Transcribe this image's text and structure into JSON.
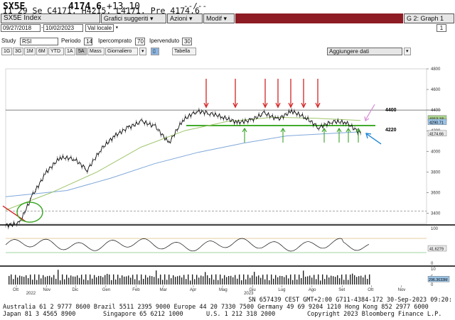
{
  "quote_line": {
    "ticker": "SX5E",
    "last_price": "4174.6",
    "change": "+13.10",
    "extra": "--/--",
    "line2": "I1 29 Se C4171. H4215. L4171. Pre 4174.6"
  },
  "title_bar": {
    "security": "SX5E Index",
    "suggested_charts": "Grafici suggeriti",
    "actions": "Azioni",
    "edit": "Modif",
    "graph_label": "G 2: Graph 1"
  },
  "controls": {
    "date_start": "09/27/2018",
    "date_end": "10/02/2023",
    "currency": "Val locale",
    "study_label": "Study",
    "study_value": "RSI",
    "period_label": "Periodo",
    "period_value": "14",
    "overbought_label": "Ipercomprato",
    "overbought_value": "70",
    "oversold_label": "Ipervenduto",
    "oversold_value": "30",
    "add_data": "Aggiungere dati",
    "table_label": "Tabella",
    "tabs": [
      "1G",
      "3G",
      "1M",
      "6M",
      "YTD",
      "1A",
      "5A",
      "Mass",
      "Giornaliero"
    ],
    "selected_tab": "5A",
    "page_number": "1"
  },
  "chart_data": {
    "type": "line",
    "title": "",
    "price_axis": [
      4800,
      4600,
      4400,
      4200,
      4000,
      3800,
      3600,
      3400
    ],
    "rsi_axis": [
      100,
      0
    ],
    "volume_axis": [
      10,
      5,
      0
    ],
    "x_month_labels": [
      "Ott",
      "Nov",
      "Dic",
      "Gen",
      "Feb",
      "Mar",
      "Apr",
      "Mag",
      "Giu",
      "Lug",
      "Ago",
      "Set",
      "Ott",
      "Nov"
    ],
    "x_year_labels": [
      "2022",
      "2023"
    ],
    "annotations": {
      "resistance_level": "4400",
      "support_level": "4220",
      "price_tags": [
        "4313.18",
        "4290.71",
        "4174.66"
      ],
      "rsi_tag": "41.6279",
      "volume_tag": "296.3633M"
    },
    "price_series_approx": [
      [
        "2022-09-29",
        3280
      ],
      [
        "2022-10-13",
        3300
      ],
      [
        "2022-10-27",
        3580
      ],
      [
        "2022-11-10",
        3800
      ],
      [
        "2022-11-24",
        3940
      ],
      [
        "2022-12-08",
        3930
      ],
      [
        "2022-12-22",
        3820
      ],
      [
        "2023-01-05",
        4020
      ],
      [
        "2023-01-19",
        4150
      ],
      [
        "2023-02-02",
        4230
      ],
      [
        "2023-02-16",
        4290
      ],
      [
        "2023-03-02",
        4240
      ],
      [
        "2023-03-16",
        4080
      ],
      [
        "2023-03-30",
        4300
      ],
      [
        "2023-04-13",
        4390
      ],
      [
        "2023-04-27",
        4370
      ],
      [
        "2023-05-11",
        4330
      ],
      [
        "2023-05-25",
        4280
      ],
      [
        "2023-06-08",
        4300
      ],
      [
        "2023-06-22",
        4370
      ],
      [
        "2023-07-06",
        4310
      ],
      [
        "2023-07-20",
        4390
      ],
      [
        "2023-08-03",
        4330
      ],
      [
        "2023-08-17",
        4230
      ],
      [
        "2023-08-31",
        4290
      ],
      [
        "2023-09-14",
        4280
      ],
      [
        "2023-09-29",
        4174.6
      ]
    ]
  },
  "footer": {
    "serial_line": "SN 657439 CEST GMT+2:00 G711-4384-172 30-Sep-2023 09:20:",
    "contacts_line1": "Australia 61 2 9777 8600 Brazil 5511 2395 9000 Europe 44 20 7330 7500 Germany 49 69 9204 1210 Hong Kong 852 2977 6000",
    "contacts_line2a": "Japan 81 3 4565 8900",
    "contacts_line2b": "Singapore 65 6212 1000",
    "contacts_line2c": "U.S. 1 212 318 2000",
    "copyright": "Copyright 2023 Bloomberg Finance L.P."
  },
  "colors": {
    "price": "#111111",
    "ma_short": "#9fc56b",
    "ma_long": "#7fa7d9",
    "support_line": "#37a61f",
    "arrow_red": "#d22222",
    "arrow_green": "#3aa32a",
    "arrow_blue": "#1f86d6",
    "arrow_pink": "#d68cd6",
    "title_red": "#8e1c24"
  }
}
